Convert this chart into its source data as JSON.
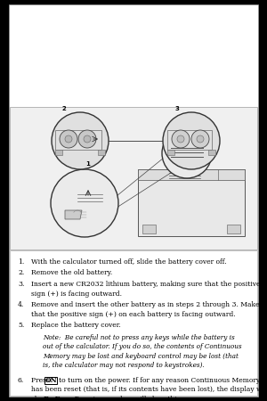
{
  "outer_bg": "#000000",
  "page_bg": "#ffffff",
  "page_border": "#999999",
  "diagram_border": "#aaaaaa",
  "diagram_bg": "#f5f5f5",
  "text_bg": "#ffffff",
  "font_size": 5.5,
  "note_font_size": 5.2,
  "items": [
    {
      "num": "1.",
      "text1": "With the calculator turned off, slide the battery cover off.",
      "text2": ""
    },
    {
      "num": "2.",
      "text1": "Remove the old battery.",
      "text2": ""
    },
    {
      "num": "3.",
      "text1": "Insert a new CR2032 lithium battery, making sure that the positive",
      "text2": "sign (+) is facing outward."
    },
    {
      "num": "4.",
      "text1": "Remove and insert the other battery as in steps 2 through 3. Make sure",
      "text2": "that the positive sign (+) on each battery is facing outward."
    },
    {
      "num": "5.",
      "text1": "Replace the battery cover.",
      "text2": ""
    }
  ],
  "note_lines": [
    "Note:  Be careful not to press any keys while the battery is",
    "out of the calculator. If you do so, the contents of Continuous",
    "Memory may be lost and keyboard control may be lost (that",
    "is, the calculator may not respond to keystrokes)."
  ],
  "item6_press": "Press ",
  "item6_on": "ON",
  "item6_rest1": " to turn on the power. If for any reason Continuous Memory",
  "item6_line2": "has been reset (that is, if its contents have been lost), the display will",
  "item6_show": "show ",
  "item6_prerr": "Pr Error",
  "item6_end": ". Pressing any key will clear this message."
}
